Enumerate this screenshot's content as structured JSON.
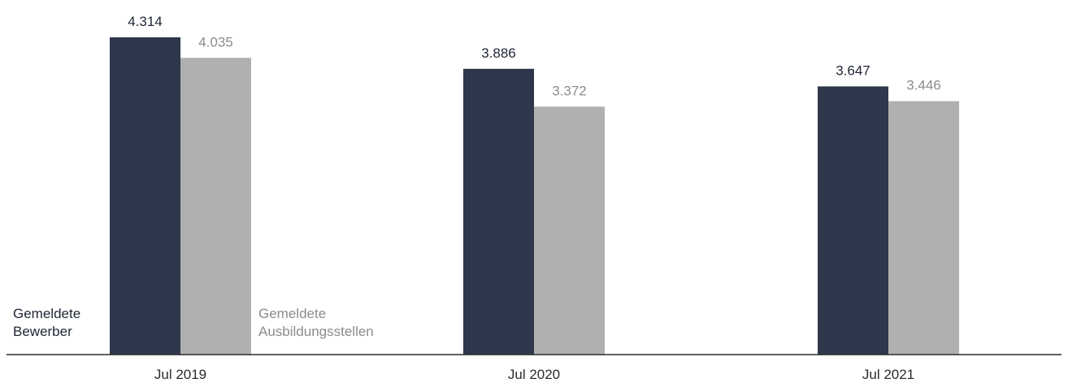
{
  "chart_data": {
    "type": "bar",
    "title": "",
    "xlabel": "",
    "ylabel": "",
    "categories": [
      "Jul 2019",
      "Jul 2020",
      "Jul 2021"
    ],
    "series": [
      {
        "name_lines": [
          "Gemeldete",
          "Bewerber"
        ],
        "values": [
          4314,
          3886,
          3647
        ],
        "value_labels": [
          "4.314",
          "3.886",
          "3.647"
        ],
        "color": "#2e374b",
        "label_color": "#1f2535"
      },
      {
        "name_lines": [
          "Gemeldete",
          "Ausbildungsstellen"
        ],
        "values": [
          4035,
          3372,
          3446
        ],
        "value_labels": [
          "4.035",
          "3.372",
          "3.446"
        ],
        "color": "#b0b0b0",
        "label_color": "#8c8c8c"
      }
    ],
    "ylim": [
      0,
      4314
    ],
    "grid": false,
    "legend": "inside-bottom, beside first category"
  }
}
